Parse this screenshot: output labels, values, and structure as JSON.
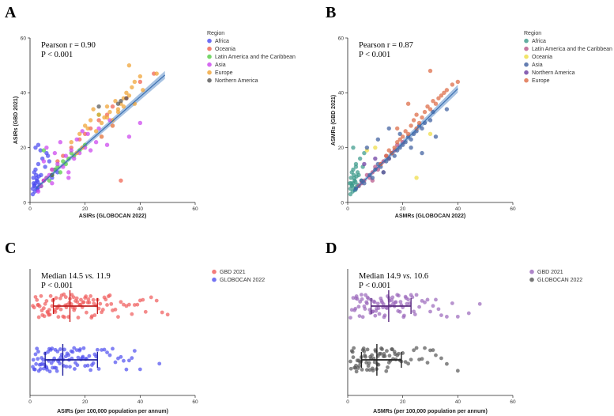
{
  "chart_data": [
    {
      "id": "A",
      "type": "scatter",
      "panel_label": "A",
      "stats": {
        "line1": "Pearson r = 0.90",
        "line2": "P < 0.001"
      },
      "xlabel": "ASIRs (GLOBOCAN 2022)",
      "ylabel": "ASIRs (GBD 2021)",
      "xlim": [
        0,
        60
      ],
      "ylim": [
        0,
        60
      ],
      "xticks": [
        "0",
        "20",
        "40",
        "60"
      ],
      "yticks": [
        "0",
        "20",
        "40",
        "60"
      ],
      "fit_line": {
        "x": [
          2,
          49
        ],
        "y": [
          5,
          46.5
        ]
      },
      "legend_title": "Region",
      "series": [
        {
          "name": "Africa",
          "color": "#4b4bf0",
          "x": [
            1,
            1.5,
            2,
            2.5,
            3,
            1.2,
            2.2,
            1.8,
            3.5,
            2.8,
            1,
            2,
            3,
            4,
            5,
            1.5,
            2.5,
            3.2,
            4.5,
            6,
            2,
            3,
            1.3,
            2.7,
            4,
            5.5,
            7,
            8,
            10,
            3.8,
            1.6,
            2.4,
            6.5,
            9
          ],
          "y": [
            5,
            6,
            7,
            8,
            5.5,
            9,
            10,
            4,
            6.5,
            7.5,
            3,
            12,
            14,
            6,
            8,
            11,
            5,
            9.5,
            16,
            18,
            20,
            21,
            7,
            4.5,
            10,
            13,
            15,
            9,
            11,
            19,
            6.2,
            8.8,
            17,
            12
          ]
        },
        {
          "name": "Oceania",
          "color": "#f0604e",
          "x": [
            5,
            8,
            12,
            15,
            18,
            22,
            25,
            30,
            33,
            35,
            28,
            40,
            45,
            20,
            10
          ],
          "y": [
            8,
            12,
            17,
            20,
            23,
            27,
            30,
            35,
            8,
            38,
            32,
            44,
            47,
            25,
            15
          ]
        },
        {
          "name": "Latin America and the Caribbean",
          "color": "#55cc44",
          "x": [
            6,
            8,
            9,
            10,
            11,
            12,
            13,
            14,
            15,
            16,
            7,
            18,
            20,
            25,
            4,
            5
          ],
          "y": [
            9,
            10,
            12,
            13,
            11,
            15,
            14,
            16,
            18,
            17,
            8,
            19,
            21,
            32,
            6,
            19
          ]
        },
        {
          "name": "Asia",
          "color": "#cc44ee",
          "x": [
            3,
            4,
            5,
            6,
            7,
            8,
            10,
            12,
            14,
            16,
            18,
            20,
            22,
            24,
            26,
            28,
            30,
            5,
            9,
            13,
            17,
            21,
            25,
            29,
            6,
            11,
            15,
            19,
            36,
            40,
            8,
            14
          ],
          "y": [
            4,
            6,
            8,
            9,
            10,
            12,
            14,
            13,
            11,
            16,
            18,
            20,
            19,
            22,
            24,
            21,
            28,
            15,
            18,
            17,
            23,
            25,
            27,
            30,
            20,
            22,
            19,
            26,
            24,
            29,
            7,
            9
          ]
        },
        {
          "name": "Europe",
          "color": "#f0a233",
          "x": [
            15,
            18,
            20,
            22,
            24,
            25,
            26,
            27,
            28,
            29,
            30,
            31,
            32,
            33,
            34,
            35,
            36,
            37,
            38,
            40,
            23,
            19,
            21,
            26,
            28,
            30,
            32,
            34,
            36,
            41,
            46,
            17,
            38
          ],
          "y": [
            22,
            25,
            28,
            30,
            26,
            32,
            29,
            31,
            35,
            33,
            30,
            37,
            34,
            36,
            38,
            40,
            39,
            42,
            44,
            46,
            34,
            20,
            27,
            24,
            31,
            28,
            33,
            35,
            50,
            41,
            47,
            18,
            36
          ]
        },
        {
          "name": "Northern America",
          "color": "#555555",
          "x": [
            8,
            25,
            32,
            33,
            35
          ],
          "y": [
            10,
            35,
            36,
            37,
            38
          ]
        }
      ]
    },
    {
      "id": "B",
      "type": "scatter",
      "panel_label": "B",
      "stats": {
        "line1": "Pearson r = 0.87",
        "line2": "P < 0.001"
      },
      "xlabel": "ASMRs (GLOBOCAN 2022)",
      "ylabel": "ASMRs (GBD 2021)",
      "xlim": [
        0,
        60
      ],
      "ylim": [
        0,
        60
      ],
      "xticks": [
        "0",
        "20",
        "40",
        "60"
      ],
      "yticks": [
        "0",
        "20",
        "40",
        "60"
      ],
      "fit_line": {
        "x": [
          2,
          40
        ],
        "y": [
          4,
          41.5
        ]
      },
      "legend_title": "Region",
      "series": [
        {
          "name": "Africa",
          "color": "#3c9a8a",
          "x": [
            1,
            1.5,
            2,
            2.5,
            3,
            1.2,
            2.2,
            1.8,
            3.5,
            2.8,
            1,
            2,
            3,
            4,
            5,
            1.5,
            2.5,
            3.2,
            4.5,
            6,
            2,
            3,
            1.3,
            2.7,
            4,
            5.5,
            1.6,
            2.4,
            3.6,
            0.8
          ],
          "y": [
            5,
            6,
            7,
            8,
            5.5,
            9,
            10,
            4,
            6.5,
            7.5,
            3,
            12,
            14,
            6,
            8,
            11,
            5,
            9.5,
            16,
            18,
            20,
            13,
            7,
            4.5,
            10,
            13,
            6.2,
            8.8,
            11,
            7
          ]
        },
        {
          "name": "Latin America and the Caribbean",
          "color": "#b85588",
          "x": [
            4,
            6,
            7,
            8,
            9,
            10,
            11,
            12,
            13,
            14,
            15,
            16,
            17,
            18,
            20,
            5,
            9,
            13
          ],
          "y": [
            6,
            8,
            10,
            9,
            11,
            13,
            12,
            14,
            15,
            17,
            16,
            18,
            19,
            21,
            22,
            7,
            8,
            11
          ]
        },
        {
          "name": "Oceania",
          "color": "#eedd44",
          "x": [
            7,
            10,
            25,
            30
          ],
          "y": [
            19,
            20,
            9,
            25
          ]
        },
        {
          "name": "Asia",
          "color": "#3d5e9e",
          "x": [
            3,
            5,
            6,
            8,
            9,
            10,
            11,
            12,
            13,
            14,
            15,
            16,
            17,
            18,
            19,
            20,
            21,
            22,
            23,
            24,
            25,
            26,
            27,
            28,
            30,
            32,
            36,
            7,
            11,
            15,
            19,
            23,
            27,
            31
          ],
          "y": [
            5,
            8,
            7,
            10,
            9,
            12,
            14,
            13,
            11,
            15,
            16,
            18,
            17,
            19,
            20,
            21,
            22,
            24,
            23,
            25,
            26,
            28,
            27,
            29,
            30,
            24,
            34,
            20,
            23,
            27,
            25,
            20,
            18,
            33
          ]
        },
        {
          "name": "Northern America",
          "color": "#6a3aa0",
          "x": [
            6,
            10
          ],
          "y": [
            14,
            16
          ]
        },
        {
          "name": "Europe",
          "color": "#dd6a44",
          "x": [
            12,
            14,
            16,
            17,
            18,
            19,
            20,
            21,
            22,
            23,
            24,
            25,
            26,
            27,
            28,
            29,
            30,
            31,
            32,
            33,
            34,
            35,
            36,
            38,
            40,
            15,
            25,
            30,
            22,
            18
          ],
          "y": [
            14,
            17,
            18,
            20,
            22,
            23,
            24,
            26,
            25,
            28,
            30,
            27,
            29,
            31,
            33,
            35,
            34,
            37,
            36,
            38,
            39,
            40,
            41,
            43,
            44,
            19,
            32,
            48,
            36,
            27
          ]
        }
      ]
    },
    {
      "id": "C",
      "type": "scatter",
      "subtype": "dot-strip",
      "panel_label": "C",
      "stats": {
        "line1a": "Median 14.5 ",
        "line1b": "vs.",
        "line1c": " 11.9",
        "line2": "P < 0.001"
      },
      "xlabel": "ASIRs (per 100,000 population per annum)",
      "xlim": [
        0,
        60
      ],
      "xticks": [
        "0",
        "20",
        "40",
        "60"
      ],
      "series": [
        {
          "name": "GBD 2021",
          "color": "#f05a5a",
          "median": 14.5,
          "q1": 8.5,
          "q3": 24.5,
          "x": [
            1,
            1.5,
            2,
            2.5,
            3,
            3.5,
            4,
            4.5,
            5,
            5.5,
            6,
            6.5,
            7,
            7.5,
            8,
            8.5,
            9,
            9.5,
            10,
            10.5,
            11,
            11.5,
            12,
            12.5,
            13,
            13.5,
            14,
            14.5,
            15,
            15.5,
            16,
            16.5,
            17,
            17.5,
            18,
            18.5,
            19,
            19.5,
            20,
            20.5,
            21,
            21.5,
            22,
            22.5,
            23,
            23.5,
            24,
            24.5,
            25,
            25.5,
            26,
            26.5,
            27,
            27.5,
            28,
            28.5,
            29,
            29.5,
            30,
            31,
            32,
            33,
            34,
            35,
            36,
            37,
            38,
            39,
            40,
            41,
            42,
            44,
            46,
            48,
            50,
            3.2,
            5.2,
            7.2,
            9.2,
            11.2,
            13.2,
            15.2,
            17.2,
            19.2,
            21.2,
            23.2,
            4.3,
            6.3,
            8.3,
            10.3,
            12.3,
            14.3,
            16.3,
            18.3,
            20.3,
            22.3,
            2.8,
            6.8,
            9.8,
            12.8,
            15.8
          ]
        },
        {
          "name": "GLOBOCAN 2022",
          "color": "#4f4ff0",
          "median": 11.9,
          "q1": 5.5,
          "q3": 24.5,
          "x": [
            1,
            1.5,
            2,
            2.5,
            3,
            3.5,
            4,
            4.5,
            5,
            5.5,
            6,
            6.5,
            7,
            7.5,
            8,
            8.5,
            9,
            9.5,
            10,
            10.5,
            11,
            11.5,
            12,
            12.5,
            13,
            13.5,
            14,
            14.5,
            15,
            15.5,
            16,
            16.5,
            17,
            17.5,
            18,
            18.5,
            19,
            19.5,
            20,
            20.5,
            21,
            21.5,
            22,
            22.5,
            23,
            23.5,
            24,
            24.5,
            25,
            26,
            27,
            28,
            29,
            30,
            31,
            32,
            33,
            34,
            35,
            36,
            37,
            38,
            40,
            47,
            1.2,
            1.8,
            2.2,
            2.8,
            3.2,
            3.8,
            4.2,
            4.8,
            5.2,
            5.8,
            6.2,
            6.8,
            7.2,
            7.8,
            8.2,
            8.8,
            9.2,
            9.8,
            10.2,
            10.8,
            11.2,
            12.2,
            13.2,
            14.2,
            15.2,
            16.2,
            17.2,
            18.2,
            19.2,
            20.2
          ]
        }
      ]
    },
    {
      "id": "D",
      "type": "scatter",
      "subtype": "dot-strip",
      "panel_label": "D",
      "stats": {
        "line1a": "Median 14.9 ",
        "line1b": "vs.",
        "line1c": " 10.6",
        "line2": "P < 0.001"
      },
      "xlabel": "ASMRs (per 100,000 population per annum)",
      "xlim": [
        0,
        60
      ],
      "xticks": [
        "0",
        "20",
        "40",
        "60"
      ],
      "series": [
        {
          "name": "GBD 2021",
          "color": "#9a66bb",
          "median": 14.9,
          "q1": 8.5,
          "q3": 23,
          "x": [
            1,
            1.5,
            2,
            2.5,
            3,
            3.5,
            4,
            4.5,
            5,
            5.5,
            6,
            6.5,
            7,
            7.5,
            8,
            8.5,
            9,
            9.5,
            10,
            10.5,
            11,
            11.5,
            12,
            12.5,
            13,
            13.5,
            14,
            14.5,
            15,
            15.5,
            16,
            16.5,
            17,
            17.5,
            18,
            18.5,
            19,
            19.5,
            20,
            20.5,
            21,
            21.5,
            22,
            22.5,
            23,
            23.5,
            24,
            24.5,
            25,
            26,
            27,
            28,
            29,
            30,
            31,
            32,
            33,
            34,
            36,
            38,
            40,
            44,
            48,
            3.2,
            5.2,
            7.2,
            9.2,
            11.2,
            13.2,
            15.2,
            17.2,
            19.2,
            21.2,
            4.3,
            6.3,
            8.3,
            10.3,
            12.3,
            14.3,
            16.3,
            18.3,
            20.3,
            2.8,
            6.8,
            9.8,
            12.8
          ]
        },
        {
          "name": "GLOBOCAN 2022",
          "color": "#555555",
          "median": 10.6,
          "q1": 5,
          "q3": 19.5,
          "x": [
            1,
            1.5,
            2,
            2.5,
            3,
            3.5,
            4,
            4.5,
            5,
            5.5,
            6,
            6.5,
            7,
            7.5,
            8,
            8.5,
            9,
            9.5,
            10,
            10.5,
            11,
            11.5,
            12,
            12.5,
            13,
            13.5,
            14,
            14.5,
            15,
            15.5,
            16,
            16.5,
            17,
            17.5,
            18,
            18.5,
            19,
            19.5,
            20,
            21,
            22,
            23,
            24,
            25,
            26,
            27,
            28,
            29,
            30,
            31,
            32,
            34,
            36,
            40,
            1.2,
            1.8,
            2.2,
            2.8,
            3.2,
            3.8,
            4.2,
            4.8,
            5.2,
            5.8,
            6.2,
            6.8,
            7.2,
            7.8,
            8.2,
            8.8,
            9.2,
            9.8,
            10.2,
            10.8,
            11.2,
            12.2,
            13.2,
            14.2,
            15.2,
            16.2,
            17.2
          ]
        }
      ]
    }
  ]
}
